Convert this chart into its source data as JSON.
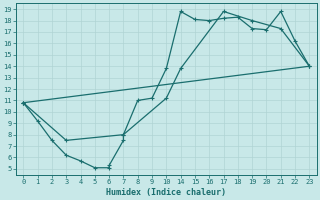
{
  "xlabel": "Humidex (Indice chaleur)",
  "bg_color": "#c8e8e8",
  "line_color": "#1a6e6e",
  "grid_color": "#b0d4d4",
  "xtick_labels": [
    "0",
    "1",
    "2",
    "3",
    "4",
    "5",
    "6",
    "7",
    "8",
    "9",
    "10",
    "14",
    "15",
    "16",
    "17",
    "18",
    "19",
    "20",
    "21",
    "22",
    "23"
  ],
  "ytick_labels": [
    "5",
    "6",
    "7",
    "8",
    "9",
    "10",
    "11",
    "12",
    "13",
    "14",
    "15",
    "16",
    "17",
    "18",
    "19"
  ],
  "ylim": [
    4.5,
    19.5
  ],
  "line1_xi": [
    0,
    1,
    2,
    3,
    4,
    5,
    6,
    6,
    7,
    7,
    8,
    9,
    10,
    11,
    12,
    13,
    14,
    15,
    16,
    17,
    18,
    19,
    20
  ],
  "line1_y": [
    10.8,
    9.2,
    7.5,
    6.2,
    5.7,
    5.1,
    5.1,
    5.3,
    7.5,
    8.0,
    11.0,
    11.2,
    13.8,
    18.8,
    18.1,
    18.0,
    18.2,
    18.3,
    17.3,
    17.2,
    18.8,
    16.2,
    14.0
  ],
  "line2_xi": [
    0,
    3,
    7,
    10,
    11,
    14,
    16,
    18,
    20
  ],
  "line2_y": [
    10.8,
    7.5,
    8.0,
    11.2,
    13.8,
    18.8,
    18.0,
    17.3,
    14.0
  ],
  "line3_xi": [
    0,
    20
  ],
  "line3_y": [
    10.8,
    14.0
  ],
  "figsize": [
    3.2,
    2.0
  ],
  "dpi": 100
}
